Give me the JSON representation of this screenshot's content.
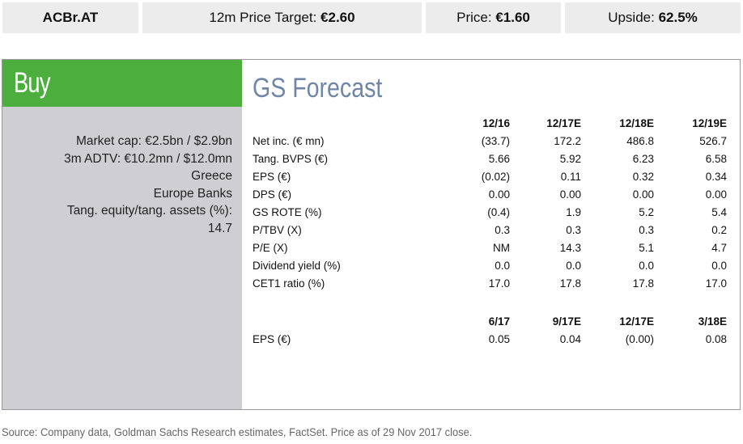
{
  "header": {
    "ticker": "ACBr.AT",
    "price_target_label": "12m Price Target: ",
    "price_target_value": "€2.60",
    "price_label": "Price: ",
    "price_value": "€1.60",
    "upside_label": "Upside: ",
    "upside_value": "62.5%"
  },
  "rating": "Buy",
  "meta": {
    "line1": "Market cap: €2.5bn / $2.9bn",
    "line2": "3m ADTV: €10.2mn / $12.0mn",
    "line3": "Greece",
    "line4": "Europe Banks",
    "line5": "Tang. equity/tang. assets (%):",
    "line6": "14.7"
  },
  "forecast": {
    "title": "GS Forecast",
    "annual_headers": [
      "12/16",
      "12/17E",
      "12/18E",
      "12/19E"
    ],
    "rows": [
      {
        "label": "Net inc. (€ mn)",
        "values": [
          "(33.7)",
          "172.2",
          "486.8",
          "526.7"
        ]
      },
      {
        "label": "Tang. BVPS (€)",
        "values": [
          "5.66",
          "5.92",
          "6.23",
          "6.58"
        ]
      },
      {
        "label": "EPS (€)",
        "values": [
          "(0.02)",
          "0.11",
          "0.32",
          "0.34"
        ]
      },
      {
        "label": "DPS (€)",
        "values": [
          "0.00",
          "0.00",
          "0.00",
          "0.00"
        ]
      },
      {
        "label": "GS ROTE (%)",
        "values": [
          "(0.4)",
          "1.9",
          "5.2",
          "5.4"
        ]
      },
      {
        "label": "P/TBV (X)",
        "values": [
          "0.3",
          "0.3",
          "0.3",
          "0.2"
        ]
      },
      {
        "label": "P/E (X)",
        "values": [
          "NM",
          "14.3",
          "5.1",
          "4.7"
        ]
      },
      {
        "label": "Dividend yield (%)",
        "values": [
          "0.0",
          "0.0",
          "0.0",
          "0.0"
        ]
      },
      {
        "label": "CET1 ratio (%)",
        "values": [
          "17.0",
          "17.8",
          "17.8",
          "17.0"
        ]
      }
    ],
    "quarterly_headers": [
      "6/17",
      "9/17E",
      "12/17E",
      "3/18E"
    ],
    "quarterly_rows": [
      {
        "label": "EPS (€)",
        "values": [
          "0.05",
          "0.04",
          "(0.00)",
          "0.08"
        ]
      }
    ]
  },
  "footnote": "Source: Company data, Goldman Sachs Research estimates, FactSet. Price as of 29 Nov 2017 close."
}
